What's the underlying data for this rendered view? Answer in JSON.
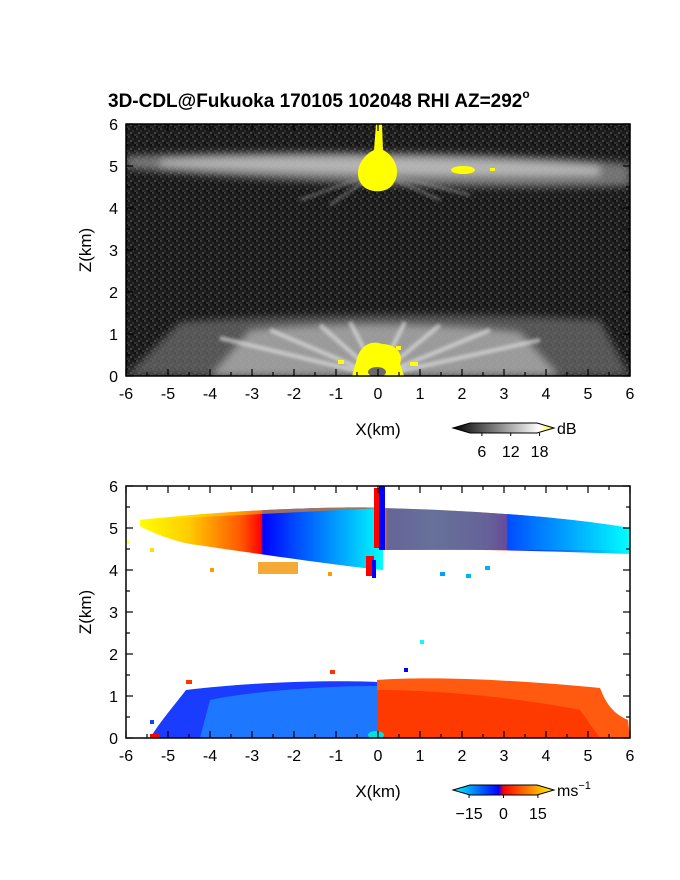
{
  "title": {
    "main": "3D-CDL@Fukuoka 170105 102048 RHI AZ=292",
    "degree_mark": "o"
  },
  "chart_data": [
    {
      "type": "heatmap",
      "panel": "intensity",
      "xlabel": "X(km)",
      "ylabel": "Z(km)",
      "xlim": [
        -6,
        6
      ],
      "ylim": [
        0,
        6
      ],
      "x_ticks": [
        "-6",
        "-5",
        "-4",
        "-3",
        "-2",
        "-1",
        "0",
        "1",
        "2",
        "3",
        "4",
        "5",
        "6"
      ],
      "y_ticks": [
        "0",
        "1",
        "2",
        "3",
        "4",
        "5",
        "6"
      ],
      "colorbar": {
        "unit": "dB",
        "ticks": [
          "6",
          "12",
          "18"
        ],
        "tick_values": [
          6,
          12,
          18
        ],
        "range": [
          0,
          21
        ],
        "colormap": "gray-yellow",
        "colors": [
          "#000000",
          "#ffffff",
          "#ffff00"
        ]
      }
    },
    {
      "type": "heatmap",
      "panel": "velocity",
      "xlabel": "X(km)",
      "ylabel": "Z(km)",
      "xlim": [
        -6,
        6
      ],
      "ylim": [
        0,
        6
      ],
      "x_ticks": [
        "-6",
        "-5",
        "-4",
        "-3",
        "-2",
        "-1",
        "0",
        "1",
        "2",
        "3",
        "4",
        "5",
        "6"
      ],
      "y_ticks": [
        "0",
        "1",
        "2",
        "3",
        "4",
        "5",
        "6"
      ],
      "colorbar": {
        "unit": "ms",
        "unit_exponent": "−1",
        "ticks": [
          "−15",
          "0",
          "15"
        ],
        "tick_values": [
          -15,
          0,
          15
        ],
        "range": [
          -22,
          22
        ],
        "colormap": "cyan-blue-red-yellow",
        "colors": [
          "#00ffff",
          "#0000ff",
          "#ff0000",
          "#ffff00"
        ]
      }
    }
  ]
}
